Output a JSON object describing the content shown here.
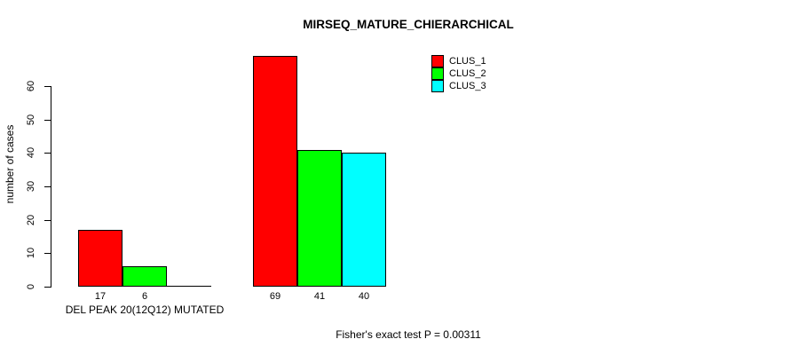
{
  "chart_data": {
    "type": "bar",
    "title": "MIRSEQ_MATURE_CHIERARCHICAL",
    "ylabel": "number of cases",
    "xlabel": "",
    "ylim": [
      0,
      60
    ],
    "yticks": [
      0,
      10,
      20,
      30,
      40,
      50,
      60
    ],
    "grid": false,
    "categories": [
      "DEL PEAK 20(12Q12) MUTATED",
      ""
    ],
    "series": [
      {
        "name": "CLUS_1",
        "color": "#ff0000",
        "values": [
          17,
          69
        ]
      },
      {
        "name": "CLUS_2",
        "color": "#00ff00",
        "values": [
          6,
          41
        ]
      },
      {
        "name": "CLUS_3",
        "color": "#00ffff",
        "values": [
          0,
          40
        ]
      }
    ],
    "bar_value_labels": [
      [
        "17",
        "6",
        ""
      ],
      [
        "69",
        "41",
        "40"
      ]
    ],
    "legend": {
      "position": "top-right",
      "entries": [
        "CLUS_1",
        "CLUS_2",
        "CLUS_3"
      ]
    },
    "annotation": "Fisher's exact test P = 0.00311"
  }
}
